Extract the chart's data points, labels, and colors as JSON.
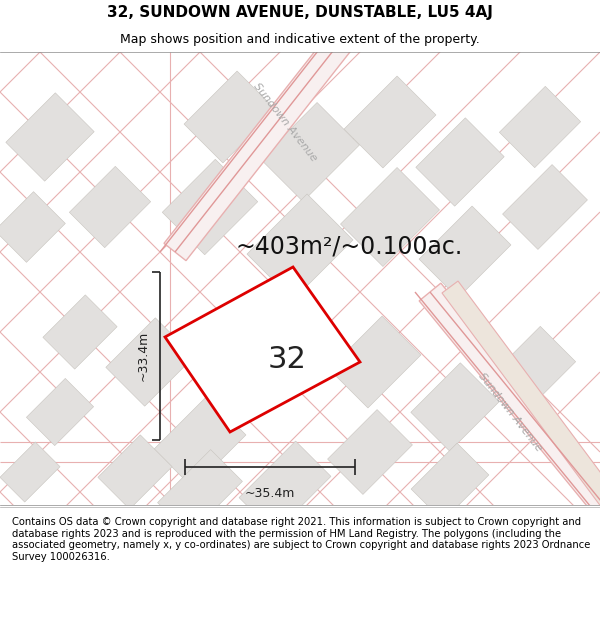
{
  "title": "32, SUNDOWN AVENUE, DUNSTABLE, LU5 4AJ",
  "subtitle": "Map shows position and indicative extent of the property.",
  "area_label": "~403m²/~0.100ac.",
  "width_label": "~35.4m",
  "height_label": "~33.4m",
  "plot_number": "32",
  "footer": "Contains OS data © Crown copyright and database right 2021. This information is subject to Crown copyright and database rights 2023 and is reproduced with the permission of HM Land Registry. The polygons (including the associated geometry, namely x, y co-ordinates) are subject to Crown copyright and database rights 2023 Ordnance Survey 100026316.",
  "bg_color": "#ffffff",
  "map_bg": "#ffffff",
  "plot_edge": "#dd0000",
  "street_label_color": "#aaaaaa",
  "dim_color": "#222222",
  "title_fontsize": 11,
  "subtitle_fontsize": 9,
  "area_fontsize": 17,
  "plot_number_fontsize": 22,
  "dim_fontsize": 9,
  "footer_fontsize": 7.2,
  "pink_line": "#e8a8a8",
  "gray_block": "#e0dedd",
  "beige_road": "#ede8e0",
  "road_gray": "#d8d4ce"
}
